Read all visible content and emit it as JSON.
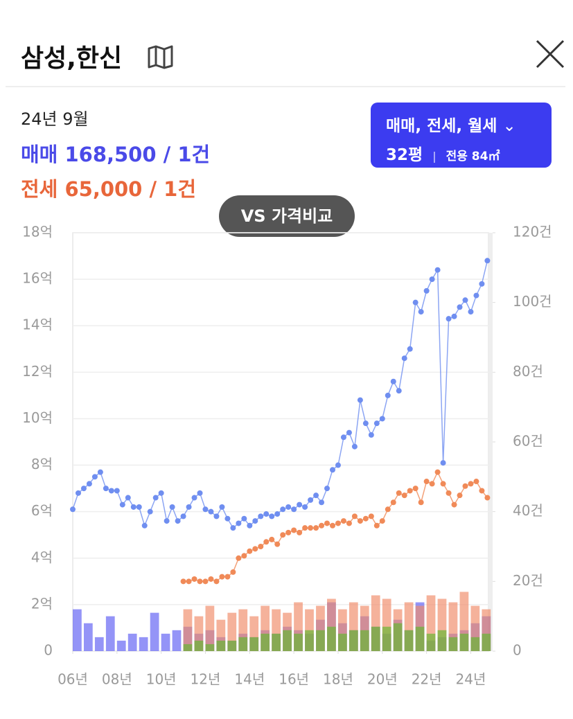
{
  "header": {
    "title": "삼성,한신"
  },
  "summary": {
    "date": "24년 9월",
    "sale": "매매 168,500 / 1건",
    "jeonse": "전세 65,000 / 1건"
  },
  "filter": {
    "types": "매매, 전세, 월세",
    "size": "32평",
    "area": "전용 84㎡"
  },
  "compare": "VS 가격비교",
  "chart_data": {
    "type": "line",
    "xlim": [
      2006,
      2024.8
    ],
    "xticks": [
      {
        "value": 2006,
        "label": "06년"
      },
      {
        "value": 2008,
        "label": "08년"
      },
      {
        "value": 2010,
        "label": "10년"
      },
      {
        "value": 2012,
        "label": "12년"
      },
      {
        "value": 2014,
        "label": "14년"
      },
      {
        "value": 2016,
        "label": "16년"
      },
      {
        "value": 2018,
        "label": "18년"
      },
      {
        "value": 2020,
        "label": "20년"
      },
      {
        "value": 2022,
        "label": "22년"
      },
      {
        "value": 2024,
        "label": "24년"
      }
    ],
    "ylim": [
      0,
      18
    ],
    "yticks": [
      0,
      {
        "value": 2,
        "label": "2억"
      },
      {
        "value": 4,
        "label": "4억"
      },
      {
        "value": 6,
        "label": "6억"
      },
      {
        "value": 8,
        "label": "8억"
      },
      {
        "value": 10,
        "label": "10억"
      },
      {
        "value": 12,
        "label": "12억"
      },
      {
        "value": 14,
        "label": "14억"
      },
      {
        "value": 16,
        "label": "16억"
      },
      {
        "value": 18,
        "label": "18억"
      }
    ],
    "y2lim": [
      0,
      120
    ],
    "y2ticks": [
      0,
      {
        "value": 20,
        "label": "20건"
      },
      {
        "value": 40,
        "label": "40건"
      },
      {
        "value": 60,
        "label": "60건"
      },
      {
        "value": 80,
        "label": "80건"
      },
      {
        "value": 100,
        "label": "100건"
      },
      {
        "value": 120,
        "label": "120건"
      }
    ],
    "grid": true,
    "series": [
      {
        "type": "bar",
        "axis": "y2",
        "color": "#5a5af2",
        "x": [
          2006,
          2006.5,
          2007,
          2007.5,
          2008,
          2008.5,
          2009,
          2009.5,
          2010,
          2010.5,
          2011,
          2011.5,
          2012,
          2012.5,
          2013,
          2013.5,
          2014,
          2014.5,
          2015,
          2015.5,
          2016,
          2016.5,
          2017,
          2017.5,
          2018,
          2018.5,
          2019,
          2019.5,
          2020,
          2020.5,
          2021,
          2021.5,
          2022,
          2022.5,
          2023,
          2023.5,
          2024,
          2024.5
        ],
        "values": [
          12,
          8,
          4,
          10,
          3,
          5,
          4,
          11,
          5,
          6,
          7,
          5,
          6,
          4,
          3,
          5,
          4,
          6,
          5,
          7,
          6,
          5,
          9,
          14,
          8,
          6,
          10,
          7,
          5,
          9,
          6,
          14,
          3,
          4,
          5,
          6,
          8,
          10
        ]
      },
      {
        "type": "bar",
        "axis": "y2",
        "color": "#f08866",
        "x": [
          2006,
          2006.5,
          2007,
          2007.5,
          2008,
          2008.5,
          2009,
          2009.5,
          2010,
          2010.5,
          2011,
          2011.5,
          2012,
          2012.5,
          2013,
          2013.5,
          2014,
          2014.5,
          2015,
          2015.5,
          2016,
          2016.5,
          2017,
          2017.5,
          2018,
          2018.5,
          2019,
          2019.5,
          2020,
          2020.5,
          2021,
          2021.5,
          2022,
          2022.5,
          2023,
          2023.5,
          2024,
          2024.5
        ],
        "values": [
          null,
          null,
          null,
          null,
          null,
          null,
          null,
          null,
          null,
          null,
          12,
          10,
          13,
          9,
          11,
          12,
          10,
          13,
          12,
          11,
          14,
          12,
          13,
          15,
          12,
          14,
          13,
          16,
          15,
          12,
          14,
          13,
          16,
          15,
          14,
          17,
          13,
          12
        ]
      },
      {
        "type": "bar",
        "axis": "y2",
        "color": "#5fb82e",
        "x": [
          2006,
          2006.5,
          2007,
          2007.5,
          2008,
          2008.5,
          2009,
          2009.5,
          2010,
          2010.5,
          2011,
          2011.5,
          2012,
          2012.5,
          2013,
          2013.5,
          2014,
          2014.5,
          2015,
          2015.5,
          2016,
          2016.5,
          2017,
          2017.5,
          2018,
          2018.5,
          2019,
          2019.5,
          2020,
          2020.5,
          2021,
          2021.5,
          2022,
          2022.5,
          2023,
          2023.5,
          2024,
          2024.5
        ],
        "values": [
          null,
          null,
          null,
          null,
          null,
          null,
          null,
          null,
          null,
          null,
          2,
          3,
          2,
          3,
          3,
          4,
          4,
          5,
          5,
          6,
          5,
          6,
          6,
          7,
          5,
          6,
          6,
          7,
          7,
          8,
          6,
          7,
          5,
          6,
          4,
          5,
          4,
          5
        ]
      },
      {
        "type": "line",
        "color": "#6f8ef0",
        "x": [
          2006,
          2006.25,
          2006.5,
          2006.75,
          2007,
          2007.25,
          2007.5,
          2007.75,
          2008,
          2008.25,
          2008.5,
          2008.75,
          2009,
          2009.25,
          2009.5,
          2009.75,
          2010,
          2010.25,
          2010.5,
          2010.75,
          2011,
          2011.25,
          2011.5,
          2011.75,
          2012,
          2012.25,
          2012.5,
          2012.75,
          2013,
          2013.25,
          2013.5,
          2013.75,
          2014,
          2014.25,
          2014.5,
          2014.75,
          2015,
          2015.25,
          2015.5,
          2015.75,
          2016,
          2016.25,
          2016.5,
          2016.75,
          2017,
          2017.25,
          2017.5,
          2017.75,
          2018,
          2018.25,
          2018.5,
          2018.75,
          2019,
          2019.25,
          2019.5,
          2019.75,
          2020,
          2020.25,
          2020.5,
          2020.75,
          2021,
          2021.25,
          2021.5,
          2021.75,
          2022,
          2022.25,
          2022.5,
          2022.75,
          2023,
          2023.25,
          2023.5,
          2023.75,
          2024,
          2024.25,
          2024.5,
          2024.75
        ],
        "values": [
          6.1,
          6.8,
          7.0,
          7.2,
          7.5,
          7.7,
          7.0,
          6.9,
          6.9,
          6.3,
          6.6,
          6.2,
          6.2,
          5.4,
          6.0,
          6.6,
          6.8,
          5.6,
          6.2,
          5.6,
          5.8,
          6.2,
          6.6,
          6.8,
          6.1,
          6.0,
          5.8,
          6.2,
          5.7,
          5.3,
          5.5,
          5.7,
          5.4,
          5.6,
          5.8,
          5.9,
          5.8,
          5.9,
          6.1,
          6.2,
          6.1,
          6.3,
          6.2,
          6.5,
          6.7,
          6.4,
          7.0,
          7.8,
          8.0,
          9.2,
          9.4,
          8.8,
          10.8,
          9.8,
          9.3,
          9.8,
          10.0,
          11.0,
          11.6,
          11.2,
          12.6,
          13.0,
          15.0,
          14.6,
          15.5,
          16.0,
          16.4,
          8.1,
          14.3,
          14.4,
          14.8,
          15.1,
          14.6,
          15.3,
          15.8,
          16.8
        ]
      },
      {
        "type": "line",
        "color": "#f08a58",
        "x": [
          2011,
          2011.25,
          2011.5,
          2011.75,
          2012,
          2012.25,
          2012.5,
          2012.75,
          2013,
          2013.25,
          2013.5,
          2013.75,
          2014,
          2014.25,
          2014.5,
          2014.75,
          2015,
          2015.25,
          2015.5,
          2015.75,
          2016,
          2016.25,
          2016.5,
          2016.75,
          2017,
          2017.25,
          2017.5,
          2017.75,
          2018,
          2018.25,
          2018.5,
          2018.75,
          2019,
          2019.25,
          2019.5,
          2019.75,
          2020,
          2020.25,
          2020.5,
          2020.75,
          2021,
          2021.25,
          2021.5,
          2021.75,
          2022,
          2022.25,
          2022.5,
          2022.75,
          2023,
          2023.25,
          2023.5,
          2023.75,
          2024,
          2024.25,
          2024.5,
          2024.75
        ],
        "values": [
          3.0,
          3.0,
          3.1,
          3.0,
          3.0,
          3.1,
          3.0,
          3.2,
          3.2,
          3.4,
          4.0,
          4.1,
          4.3,
          4.4,
          4.5,
          4.7,
          4.8,
          4.6,
          5.0,
          5.1,
          5.2,
          5.1,
          5.3,
          5.3,
          5.3,
          5.4,
          5.5,
          5.4,
          5.5,
          5.6,
          5.5,
          5.8,
          5.6,
          5.7,
          5.8,
          5.4,
          5.6,
          6.1,
          6.4,
          6.8,
          6.7,
          6.9,
          7.0,
          6.4,
          7.3,
          7.2,
          7.7,
          7.2,
          6.8,
          6.3,
          6.7,
          7.1,
          7.2,
          7.3,
          6.9,
          6.6
        ]
      }
    ]
  }
}
